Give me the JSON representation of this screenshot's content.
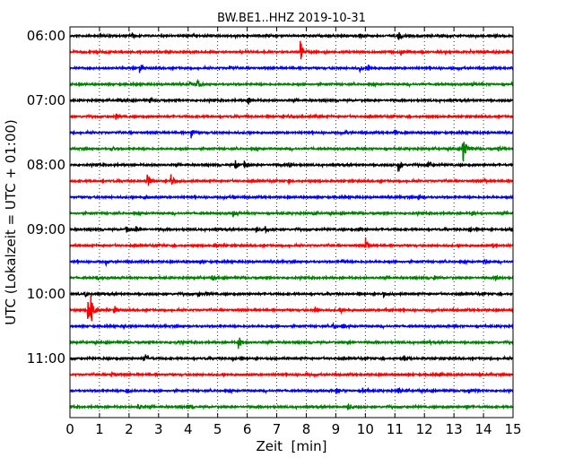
{
  "chart_data": {
    "type": "line",
    "title": "BW.BE1..HHZ 2019-10-31",
    "xlabel": "Zeit  [min]",
    "ylabel": "UTC (Lokalzeit = UTC + 01:00)",
    "xlim": [
      0,
      15
    ],
    "x_ticks": [
      0,
      1,
      2,
      3,
      4,
      5,
      6,
      7,
      8,
      9,
      10,
      11,
      12,
      13,
      14,
      15
    ],
    "x_tick_labels": [
      "0",
      "1",
      "2",
      "3",
      "4",
      "5",
      "6",
      "7",
      "8",
      "9",
      "10",
      "11",
      "12",
      "13",
      "14",
      "15"
    ],
    "y_tick_labels": [
      "06:00",
      "07:00",
      "08:00",
      "09:00",
      "10:00",
      "11:00"
    ],
    "grid": "vertical dotted",
    "colors": [
      "#000000",
      "#ff0000",
      "#0000ff",
      "#008000"
    ],
    "rows": [
      {
        "start": "06:00",
        "color": "#000000",
        "events": [
          {
            "t": 1.0,
            "a": 0.3
          },
          {
            "t": 2.1,
            "a": 0.3
          },
          {
            "t": 9.8,
            "a": 0.6
          },
          {
            "t": 11.1,
            "a": 0.7
          }
        ]
      },
      {
        "start": "06:15",
        "color": "#ff0000",
        "events": [
          {
            "t": 7.8,
            "a": 1.6
          },
          {
            "t": 0.9,
            "a": 0.3
          },
          {
            "t": 11.2,
            "a": 0.3
          },
          {
            "t": 14.0,
            "a": 0.3
          }
        ]
      },
      {
        "start": "06:30",
        "color": "#0000ff",
        "events": [
          {
            "t": 2.35,
            "a": 0.7
          },
          {
            "t": 5.4,
            "a": 0.3
          },
          {
            "t": 9.8,
            "a": 0.4
          },
          {
            "t": 10.1,
            "a": 0.4
          },
          {
            "t": 12.9,
            "a": 0.3
          }
        ]
      },
      {
        "start": "06:45",
        "color": "#008000",
        "events": [
          {
            "t": 4.3,
            "a": 0.5
          },
          {
            "t": 4.05,
            "a": 0.3
          },
          {
            "t": 13.6,
            "a": 0.3
          }
        ]
      },
      {
        "start": "07:00",
        "color": "#000000",
        "events": [
          {
            "t": 6.0,
            "a": 0.8
          },
          {
            "t": 1.6,
            "a": 0.3
          },
          {
            "t": 2.7,
            "a": 0.3
          }
        ]
      },
      {
        "start": "07:15",
        "color": "#ff0000",
        "events": [
          {
            "t": 1.55,
            "a": 0.4
          },
          {
            "t": 7.4,
            "a": 0.3
          },
          {
            "t": 8.3,
            "a": 0.3
          }
        ]
      },
      {
        "start": "07:30",
        "color": "#0000ff",
        "events": [
          {
            "t": 4.1,
            "a": 0.8
          },
          {
            "t": 9.3,
            "a": 0.3
          },
          {
            "t": 11.0,
            "a": 0.3
          }
        ]
      },
      {
        "start": "07:45",
        "color": "#008000",
        "events": [
          {
            "t": 13.3,
            "a": 2.4
          },
          {
            "t": 1.4,
            "a": 0.3
          },
          {
            "t": 14.5,
            "a": 0.4
          }
        ]
      },
      {
        "start": "08:00",
        "color": "#000000",
        "events": [
          {
            "t": 5.6,
            "a": 0.6
          },
          {
            "t": 5.9,
            "a": 0.6
          },
          {
            "t": 11.1,
            "a": 1.0
          },
          {
            "t": 12.1,
            "a": 0.6
          },
          {
            "t": 7.4,
            "a": 0.4
          },
          {
            "t": 2.8,
            "a": 0.3
          }
        ]
      },
      {
        "start": "08:15",
        "color": "#ff0000",
        "events": [
          {
            "t": 2.6,
            "a": 1.4
          },
          {
            "t": 3.4,
            "a": 1.2
          },
          {
            "t": 7.4,
            "a": 0.3
          },
          {
            "t": 14.0,
            "a": 0.3
          }
        ]
      },
      {
        "start": "08:30",
        "color": "#0000ff",
        "events": [
          {
            "t": 2.5,
            "a": 0.3
          },
          {
            "t": 5.5,
            "a": 0.3
          },
          {
            "t": 11.8,
            "a": 0.3
          }
        ]
      },
      {
        "start": "08:45",
        "color": "#008000",
        "events": [
          {
            "t": 5.5,
            "a": 0.4
          },
          {
            "t": 8.2,
            "a": 0.3
          },
          {
            "t": 13.6,
            "a": 0.3
          }
        ]
      },
      {
        "start": "09:00",
        "color": "#000000",
        "events": [
          {
            "t": 1.9,
            "a": 0.5
          },
          {
            "t": 2.2,
            "a": 0.4
          },
          {
            "t": 6.3,
            "a": 0.4
          },
          {
            "t": 6.6,
            "a": 0.4
          },
          {
            "t": 9.75,
            "a": 0.4
          },
          {
            "t": 13.5,
            "a": 0.4
          },
          {
            "t": 14.95,
            "a": 0.6
          }
        ]
      },
      {
        "start": "09:15",
        "color": "#ff0000",
        "events": [
          {
            "t": 10.0,
            "a": 1.2
          },
          {
            "t": 4.9,
            "a": 0.3
          },
          {
            "t": 14.3,
            "a": 0.3
          }
        ]
      },
      {
        "start": "09:30",
        "color": "#0000ff",
        "events": [
          {
            "t": 1.2,
            "a": 0.3
          },
          {
            "t": 4.4,
            "a": 0.3
          },
          {
            "t": 9.2,
            "a": 0.3
          },
          {
            "t": 14.0,
            "a": 0.3
          }
        ]
      },
      {
        "start": "09:45",
        "color": "#008000",
        "events": [
          {
            "t": 0.9,
            "a": 0.3
          },
          {
            "t": 4.8,
            "a": 0.3
          },
          {
            "t": 12.3,
            "a": 0.3
          },
          {
            "t": 14.4,
            "a": 0.4
          }
        ]
      },
      {
        "start": "10:00",
        "color": "#000000",
        "events": [
          {
            "t": 4.3,
            "a": 0.4
          },
          {
            "t": 4.6,
            "a": 0.3
          },
          {
            "t": 10.6,
            "a": 0.4
          },
          {
            "t": 0.5,
            "a": 0.3
          }
        ]
      },
      {
        "start": "10:15",
        "color": "#ff0000",
        "events": [
          {
            "t": 0.6,
            "a": 1.6
          },
          {
            "t": 0.7,
            "a": 2.2
          },
          {
            "t": 1.5,
            "a": 0.6
          },
          {
            "t": 8.3,
            "a": 0.4
          },
          {
            "t": 9.1,
            "a": 0.5
          },
          {
            "t": 10.7,
            "a": 0.3
          }
        ]
      },
      {
        "start": "10:30",
        "color": "#0000ff",
        "events": [
          {
            "t": 1.8,
            "a": 0.3
          },
          {
            "t": 8.9,
            "a": 0.4
          },
          {
            "t": 9.2,
            "a": 0.4
          }
        ]
      },
      {
        "start": "10:45",
        "color": "#008000",
        "events": [
          {
            "t": 5.7,
            "a": 1.0
          },
          {
            "t": 3.6,
            "a": 0.3
          },
          {
            "t": 9.4,
            "a": 0.3
          }
        ]
      },
      {
        "start": "11:00",
        "color": "#000000",
        "events": [
          {
            "t": 2.5,
            "a": 0.8
          },
          {
            "t": 5.5,
            "a": 0.3
          },
          {
            "t": 11.3,
            "a": 0.3
          }
        ]
      },
      {
        "start": "11:15",
        "color": "#ff0000",
        "events": [
          {
            "t": 1.4,
            "a": 0.3
          },
          {
            "t": 8.0,
            "a": 0.3
          },
          {
            "t": 12.5,
            "a": 0.3
          }
        ]
      },
      {
        "start": "11:30",
        "color": "#0000ff",
        "events": [
          {
            "t": 1.9,
            "a": 0.4
          },
          {
            "t": 9.0,
            "a": 0.4
          },
          {
            "t": 9.9,
            "a": 0.5
          },
          {
            "t": 11.1,
            "a": 0.5
          },
          {
            "t": 13.5,
            "a": 0.3
          }
        ]
      },
      {
        "start": "11:45",
        "color": "#008000",
        "events": [
          {
            "t": 2.3,
            "a": 0.4
          },
          {
            "t": 4.0,
            "a": 0.3
          },
          {
            "t": 9.4,
            "a": 0.5
          },
          {
            "t": 13.4,
            "a": 0.3
          }
        ]
      }
    ]
  }
}
